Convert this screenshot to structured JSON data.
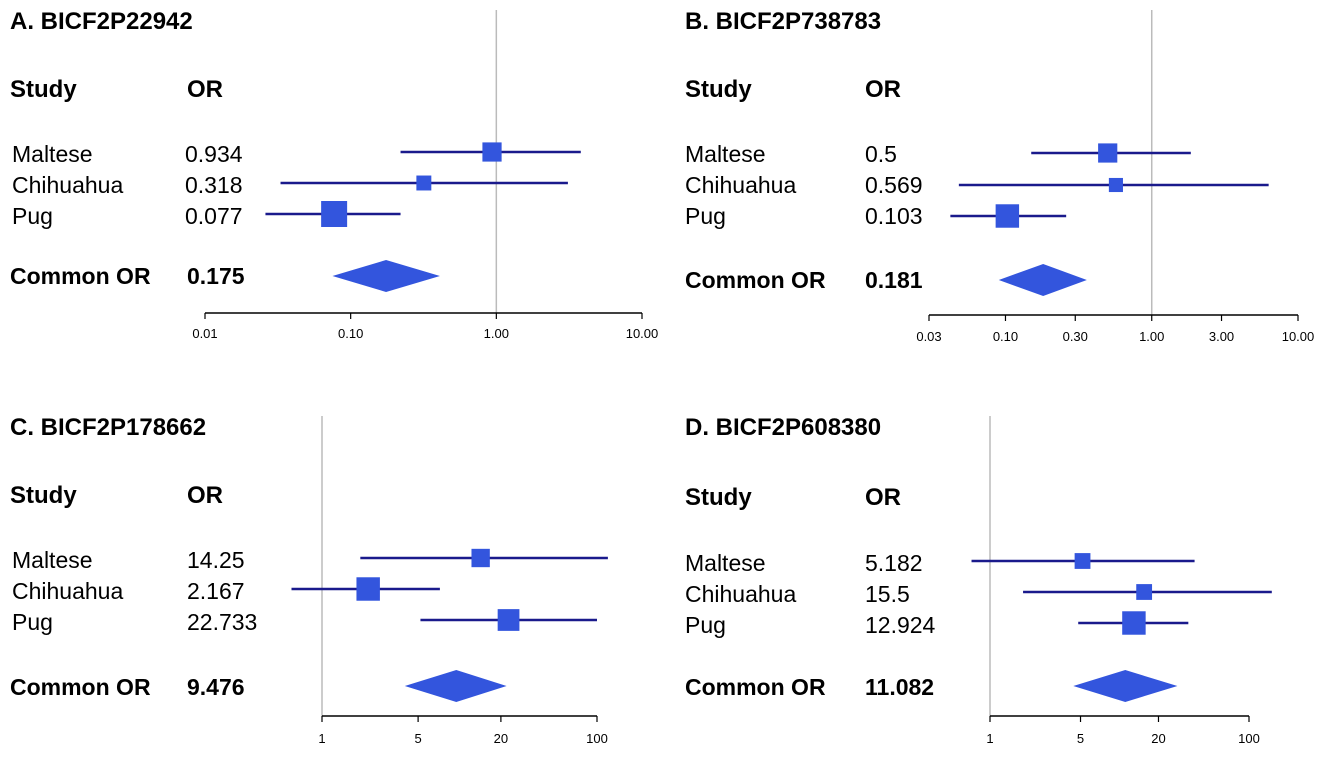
{
  "page": {
    "header_study": "Study",
    "header_or": "OR",
    "common_label": "Common OR"
  },
  "colors": {
    "marker": "#3355dd",
    "ci_line": "#1a1a8c",
    "ref_line": "#bbbbbb"
  },
  "chart_data": [
    {
      "type": "forest",
      "title": "A. BICF2P22942",
      "x_scale": "log",
      "xlim": [
        0.01,
        10
      ],
      "ticks": [
        0.01,
        0.1,
        1,
        10
      ],
      "tick_labels": [
        "0.01",
        "0.10",
        "1.00",
        "10.00"
      ],
      "studies": [
        {
          "name": "Maltese",
          "or_label": "0.934",
          "or": 0.934,
          "ci": [
            0.22,
            3.8
          ],
          "weight": 0.6
        },
        {
          "name": "Chihuahua",
          "or_label": "0.318",
          "or": 0.318,
          "ci": [
            0.033,
            3.1
          ],
          "weight": 0.35
        },
        {
          "name": "Pug",
          "or_label": "0.077",
          "or": 0.077,
          "ci": [
            0.026,
            0.22
          ],
          "weight": 1.0
        }
      ],
      "common": {
        "or_label": "0.175",
        "or": 0.175,
        "ci": [
          0.075,
          0.41
        ]
      }
    },
    {
      "type": "forest",
      "title": "B. BICF2P738783",
      "x_scale": "log",
      "xlim": [
        0.03,
        10
      ],
      "ticks": [
        0.03,
        0.1,
        0.3,
        1,
        3,
        10
      ],
      "tick_labels": [
        "0.03",
        "0.10",
        "0.30",
        "1.00",
        "3.00",
        "10.00"
      ],
      "studies": [
        {
          "name": "Maltese",
          "or_label": "0.5",
          "or": 0.5,
          "ci": [
            0.15,
            1.85
          ],
          "weight": 0.6
        },
        {
          "name": "Chihuahua",
          "or_label": "0.569",
          "or": 0.569,
          "ci": [
            0.048,
            6.3
          ],
          "weight": 0.3
        },
        {
          "name": "Pug",
          "or_label": "0.103",
          "or": 0.103,
          "ci": [
            0.042,
            0.26
          ],
          "weight": 0.85
        }
      ],
      "common": {
        "or_label": "0.181",
        "or": 0.181,
        "ci": [
          0.09,
          0.36
        ]
      }
    },
    {
      "type": "forest",
      "title": "C. BICF2P178662",
      "x_scale": "log",
      "xlim": [
        1,
        100
      ],
      "ticks": [
        1,
        5,
        20,
        100
      ],
      "tick_labels": [
        "1",
        "5",
        "20",
        "100"
      ],
      "studies": [
        {
          "name": "Maltese",
          "or_label": "14.25",
          "or": 14.25,
          "ci": [
            1.9,
            120
          ],
          "weight": 0.55
        },
        {
          "name": "Chihuahua",
          "or_label": "2.167",
          "or": 2.167,
          "ci": [
            0.6,
            7.2
          ],
          "weight": 0.85
        },
        {
          "name": "Pug",
          "or_label": "22.733",
          "or": 22.733,
          "ci": [
            5.2,
            100
          ],
          "weight": 0.75
        }
      ],
      "common": {
        "or_label": "9.476",
        "or": 9.476,
        "ci": [
          4.0,
          22
        ]
      }
    },
    {
      "type": "forest",
      "title": "D. BICF2P608380",
      "x_scale": "log",
      "xlim": [
        1,
        100
      ],
      "ticks": [
        1,
        5,
        20,
        100
      ],
      "tick_labels": [
        "1",
        "5",
        "20",
        "100"
      ],
      "studies": [
        {
          "name": "Maltese",
          "or_label": "5.182",
          "or": 5.182,
          "ci": [
            0.72,
            38
          ],
          "weight": 0.4
        },
        {
          "name": "Chihuahua",
          "or_label": "15.5",
          "or": 15.5,
          "ci": [
            1.8,
            150
          ],
          "weight": 0.4
        },
        {
          "name": "Pug",
          "or_label": "12.924",
          "or": 12.924,
          "ci": [
            4.8,
            34
          ],
          "weight": 0.85
        }
      ],
      "common": {
        "or_label": "11.082",
        "or": 11.082,
        "ci": [
          4.4,
          28
        ]
      }
    }
  ]
}
